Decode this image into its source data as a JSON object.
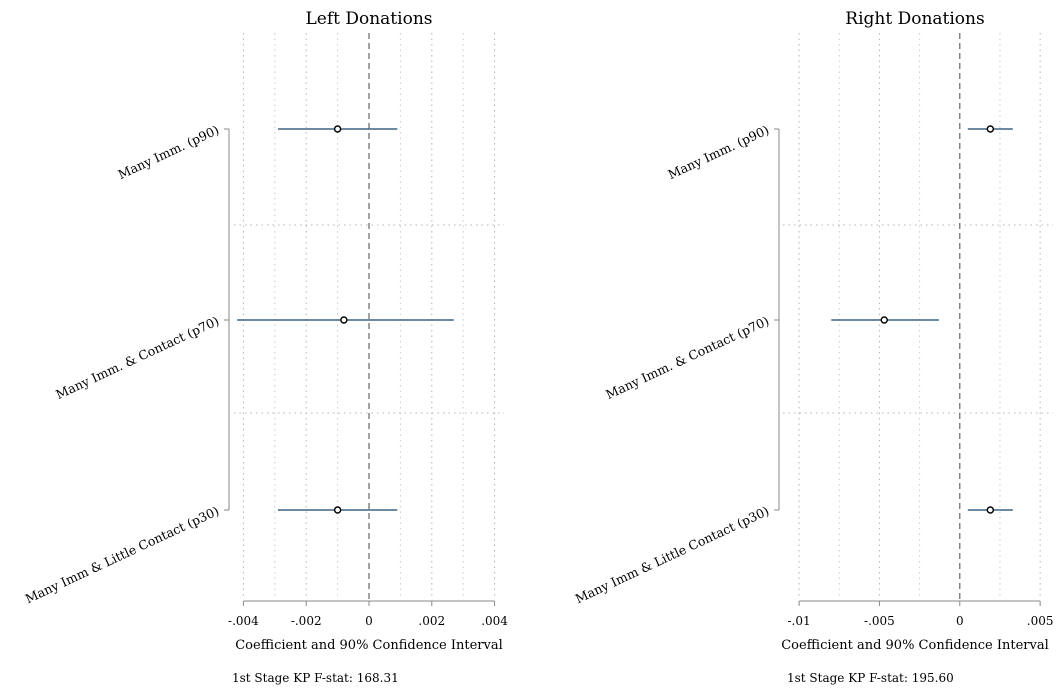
{
  "chart_data": [
    {
      "type": "scatter",
      "title": "Left Donations",
      "xlabel": "Coefficient and 90% Confidence Interval",
      "note": "1st Stage KP F-stat: 168.31",
      "xlim": [
        -0.0043,
        0.0043
      ],
      "xticks": [
        -0.004,
        -0.002,
        0,
        0.002,
        0.004
      ],
      "xtick_labels": [
        "-.004",
        "-.002",
        "0",
        ".002",
        ".004"
      ],
      "categories": [
        "Many Imm. (p90)",
        "Many Imm. & Contact (p70)",
        "Many Imm & Little Contact (p30)"
      ],
      "points": [
        {
          "estimate": -0.001,
          "ci_low": -0.0029,
          "ci_high": 0.0009
        },
        {
          "estimate": -0.0008,
          "ci_low": -0.0042,
          "ci_high": 0.0027
        },
        {
          "estimate": -0.001,
          "ci_low": -0.0029,
          "ci_high": 0.0009
        }
      ],
      "reference_line": 0,
      "grid": true
    },
    {
      "type": "scatter",
      "title": "Right Donations",
      "xlabel": "Coefficient and 90% Confidence Interval",
      "note": "1st Stage KP F-stat: 195.60",
      "xlim": [
        -0.011,
        0.0058
      ],
      "xticks": [
        -0.01,
        -0.005,
        0,
        0.005
      ],
      "xtick_labels": [
        "-.01",
        "-.005",
        "0",
        ".005"
      ],
      "categories": [
        "Many Imm. (p90)",
        "Many Imm. & Contact (p70)",
        "Many Imm & Little Contact (p30)"
      ],
      "points": [
        {
          "estimate": 0.0019,
          "ci_low": 0.0005,
          "ci_high": 0.0033
        },
        {
          "estimate": -0.0047,
          "ci_low": -0.008,
          "ci_high": -0.0013
        },
        {
          "estimate": 0.0019,
          "ci_low": 0.0005,
          "ci_high": 0.0033
        }
      ],
      "reference_line": 0,
      "grid": true
    }
  ],
  "colors": {
    "ci_line": "#3b6484",
    "marker_edge": "#000000",
    "marker_fill": "#ffffff",
    "grid": "#b4b4b4",
    "reference": "#666666",
    "axis": "#888888"
  }
}
